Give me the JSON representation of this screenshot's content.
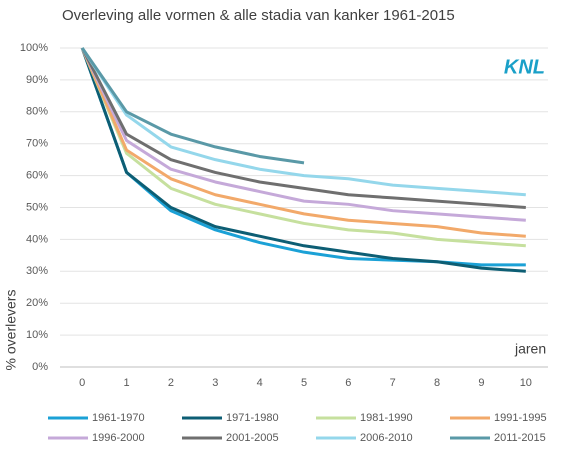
{
  "chart_data": {
    "type": "line",
    "title": "Overleving  alle vormen & alle stadia van kanker 1961-2015",
    "y_label": "% overlevers",
    "x_label": "jaren",
    "logo": "KNL",
    "x": [
      0,
      1,
      2,
      3,
      4,
      5,
      6,
      7,
      8,
      9,
      10
    ],
    "xlim": [
      -0.5,
      10.5
    ],
    "xticks": [
      0,
      1,
      2,
      3,
      4,
      5,
      6,
      7,
      8,
      9,
      10
    ],
    "ylim": [
      0,
      100
    ],
    "yticks": [
      {
        "value": 0,
        "label": "0%"
      },
      {
        "value": 10,
        "label": "10%"
      },
      {
        "value": 20,
        "label": "20%"
      },
      {
        "value": 30,
        "label": "30%"
      },
      {
        "value": 40,
        "label": "40%"
      },
      {
        "value": 50,
        "label": "50%"
      },
      {
        "value": 60,
        "label": "60%"
      },
      {
        "value": 70,
        "label": "70%"
      },
      {
        "value": 80,
        "label": "80%"
      },
      {
        "value": 90,
        "label": "90%"
      },
      {
        "value": 100,
        "label": "100%"
      }
    ],
    "grid": true,
    "series": [
      {
        "name": "1961-1970",
        "color": "#1ba1d6",
        "values": [
          100,
          61,
          49,
          43,
          39,
          36,
          34,
          33.5,
          33,
          32,
          32
        ]
      },
      {
        "name": "1971-1980",
        "color": "#0d5e74",
        "values": [
          100,
          61,
          50,
          44,
          41,
          38,
          36,
          34,
          33,
          31,
          30
        ]
      },
      {
        "name": "1981-1990",
        "color": "#c6e09e",
        "values": [
          100,
          67,
          56,
          51,
          48,
          45,
          43,
          42,
          40,
          39,
          38
        ]
      },
      {
        "name": "1991-1995",
        "color": "#f2a96a",
        "values": [
          100,
          68,
          59,
          54,
          51,
          48,
          46,
          45,
          44,
          42,
          41
        ]
      },
      {
        "name": "1996-2000",
        "color": "#c5a9d9",
        "values": [
          100,
          71,
          62,
          58,
          55,
          52,
          51,
          49,
          48,
          47,
          46
        ]
      },
      {
        "name": "2001-2005",
        "color": "#6f6f6f",
        "values": [
          100,
          73,
          65,
          61,
          58,
          56,
          54,
          53,
          52,
          51,
          50
        ]
      },
      {
        "name": "2006-2010",
        "color": "#94d7eb",
        "values": [
          100,
          79,
          69,
          65,
          62,
          60,
          59,
          57,
          56,
          55,
          54
        ]
      },
      {
        "name": "2011-2015",
        "color": "#5a99a7",
        "values": [
          100,
          80,
          73,
          69,
          66,
          64,
          null,
          null,
          null,
          null,
          null
        ]
      }
    ]
  }
}
